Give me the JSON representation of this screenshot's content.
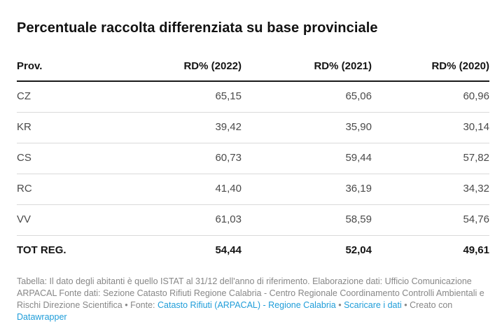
{
  "title": "Percentuale raccolta differenziata su base provinciale",
  "chart_data": {
    "type": "table",
    "columns": [
      "Prov.",
      "RD% (2022)",
      "RD% (2021)",
      "RD% (2020)"
    ],
    "rows": [
      [
        "CZ",
        "65,15",
        "65,06",
        "60,96"
      ],
      [
        "KR",
        "39,42",
        "35,90",
        "30,14"
      ],
      [
        "CS",
        "60,73",
        "59,44",
        "57,82"
      ],
      [
        "RC",
        "41,40",
        "36,19",
        "34,32"
      ],
      [
        "VV",
        "61,03",
        "58,59",
        "54,76"
      ],
      [
        "TOT REG.",
        "54,44",
        "52,04",
        "49,61"
      ]
    ],
    "total_row_label": "TOT REG.",
    "number_format": "comma-decimal, two digits"
  },
  "footer": {
    "notes": "Tabella: Il dato degli abitanti è quello ISTAT al 31/12 dell'anno di riferimento. Elaborazione dati: Ufficio Comunicazione ARPACAL Fonte dati: Sezione Catasto Rifiuti Regione Calabria - Centro Regionale Coordinamento Controlli Ambientali e Rischi Direzione Scientifica ",
    "fonte_label": "• Fonte: ",
    "source_link_label": "Catasto Rifiuti (ARPACAL) - Regione Calabria",
    "separator": " • ",
    "download_link_label": "Scaricare i dati",
    "created_with_label": " • Creato con ",
    "datawrapper_link_label": "Datawrapper"
  },
  "colors": {
    "link_blue": "#1f9dd9",
    "body_text": "#4a4a4a",
    "strong_text": "#141414",
    "footer_text": "#878787",
    "header_rule": "#1a1a1a",
    "row_rule": "#dadada",
    "background": "#ffffff"
  }
}
